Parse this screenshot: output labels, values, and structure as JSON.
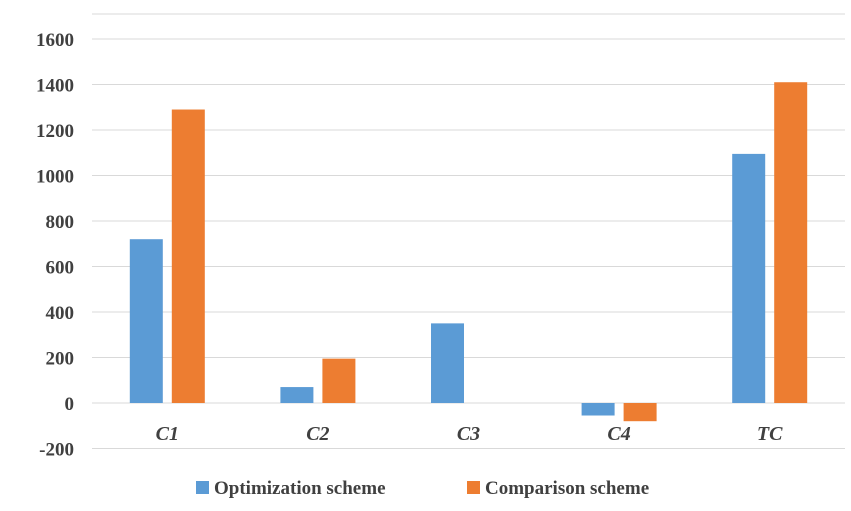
{
  "chart_data": {
    "type": "bar",
    "categories": [
      "C1",
      "C2",
      "C3",
      "C4",
      "TC"
    ],
    "series": [
      {
        "name": "Optimization scheme",
        "color": "#5B9BD5",
        "values": [
          720,
          70,
          350,
          -55,
          1095
        ]
      },
      {
        "name": "Comparison scheme",
        "color": "#ED7D31",
        "values": [
          1290,
          195,
          0,
          -80,
          1410
        ]
      }
    ],
    "y_ticks": [
      "-200",
      "0",
      "200",
      "400",
      "600",
      "800",
      "1000",
      "1200",
      "1400",
      "1600"
    ],
    "ylim": [
      -200,
      1600
    ],
    "grid": true,
    "legend_position": "bottom",
    "title": "",
    "xlabel": "",
    "ylabel": ""
  }
}
